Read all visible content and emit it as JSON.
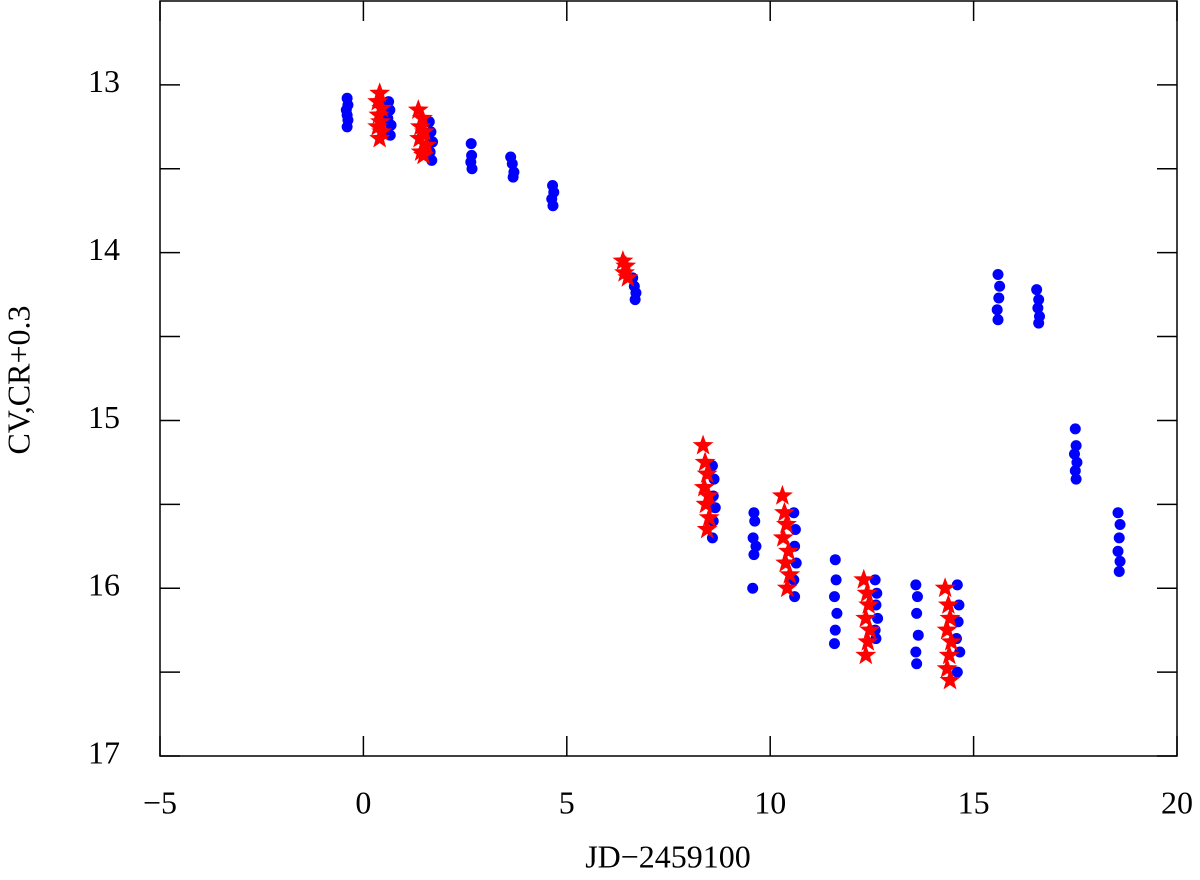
{
  "chart_data": {
    "type": "scatter",
    "x_label": "JD−2459100",
    "y_label": "CV,CR+0.3",
    "xlim": [
      -5,
      20
    ],
    "ylim": [
      12.5,
      17
    ],
    "y_inverted": true,
    "xticks": [
      {
        "value": -5,
        "label": "−5"
      },
      0,
      5,
      10,
      15,
      20
    ],
    "yticks": [
      13,
      14,
      15,
      16,
      17
    ],
    "y_minor_ticks": [
      13.5,
      14.5,
      15.5,
      16.5
    ],
    "series": [
      {
        "color": "#0000ff",
        "marker": "circle",
        "x": [
          -0.4,
          -0.38,
          -0.42,
          -0.4,
          -0.38,
          -0.4,
          0.62,
          0.65,
          0.6,
          0.68,
          0.66,
          1.62,
          1.66,
          1.7,
          1.64,
          1.68,
          2.65,
          2.66,
          2.64,
          2.67,
          3.62,
          3.66,
          3.7,
          3.68,
          4.65,
          4.68,
          4.63,
          4.66,
          6.62,
          6.66,
          6.7,
          6.68,
          8.58,
          8.62,
          8.6,
          8.65,
          8.6,
          8.58,
          9.6,
          9.62,
          9.58,
          9.65,
          9.6,
          9.57,
          10.58,
          10.62,
          10.6,
          10.64,
          10.58,
          10.6,
          11.6,
          11.62,
          11.58,
          11.64,
          11.6,
          11.58,
          12.58,
          12.62,
          12.6,
          12.64,
          12.58,
          12.6,
          13.58,
          13.62,
          13.6,
          13.64,
          13.58,
          13.6,
          14.6,
          14.64,
          14.62,
          14.58,
          14.66,
          14.6,
          15.6,
          15.64,
          15.62,
          15.58,
          15.6,
          16.55,
          16.6,
          16.58,
          16.62,
          16.6,
          17.5,
          17.52,
          17.48,
          17.54,
          17.5,
          17.52,
          18.55,
          18.6,
          18.58,
          18.55,
          18.6,
          18.58
        ],
        "values": [
          13.08,
          13.12,
          13.15,
          13.18,
          13.21,
          13.25,
          13.1,
          13.15,
          13.2,
          13.24,
          13.3,
          13.22,
          13.28,
          13.34,
          13.4,
          13.45,
          13.35,
          13.42,
          13.46,
          13.5,
          13.43,
          13.47,
          13.52,
          13.55,
          13.6,
          13.64,
          13.68,
          13.72,
          14.15,
          14.2,
          14.24,
          14.28,
          15.27,
          15.35,
          15.45,
          15.52,
          15.6,
          15.7,
          15.55,
          15.6,
          15.7,
          15.75,
          15.8,
          16.0,
          15.55,
          15.65,
          15.75,
          15.85,
          15.95,
          16.05,
          15.83,
          15.95,
          16.05,
          16.15,
          16.25,
          16.33,
          15.95,
          16.03,
          16.1,
          16.18,
          16.25,
          16.3,
          15.98,
          16.05,
          16.15,
          16.28,
          16.38,
          16.45,
          15.98,
          16.1,
          16.2,
          16.3,
          16.38,
          16.5,
          14.13,
          14.2,
          14.27,
          14.34,
          14.4,
          14.22,
          14.28,
          14.33,
          14.38,
          14.42,
          15.05,
          15.15,
          15.2,
          15.25,
          15.3,
          15.35,
          15.55,
          15.62,
          15.7,
          15.78,
          15.84,
          15.9
        ]
      },
      {
        "color": "#ff0000",
        "marker": "star",
        "x": [
          0.4,
          0.35,
          0.45,
          0.38,
          0.42,
          0.35,
          0.45,
          0.4,
          1.35,
          1.45,
          1.4,
          1.5,
          1.38,
          1.55,
          1.42,
          1.48,
          6.38,
          6.45,
          6.42,
          6.5,
          8.35,
          8.4,
          8.45,
          8.38,
          8.48,
          8.42,
          8.5,
          8.45,
          10.3,
          10.35,
          10.4,
          10.32,
          10.45,
          10.38,
          10.48,
          10.42,
          12.3,
          12.38,
          12.42,
          12.35,
          12.45,
          12.4,
          12.35,
          14.3,
          14.38,
          14.42,
          14.35,
          14.45,
          14.4,
          14.35,
          14.42
        ],
        "values": [
          13.05,
          13.1,
          13.14,
          13.18,
          13.22,
          13.25,
          13.28,
          13.32,
          13.15,
          13.2,
          13.25,
          13.28,
          13.32,
          13.36,
          13.4,
          13.42,
          14.05,
          14.08,
          14.12,
          14.15,
          15.15,
          15.25,
          15.32,
          15.4,
          15.45,
          15.5,
          15.58,
          15.65,
          15.45,
          15.55,
          15.62,
          15.7,
          15.78,
          15.85,
          15.92,
          16.0,
          15.95,
          16.03,
          16.1,
          16.18,
          16.25,
          16.32,
          16.4,
          16.0,
          16.1,
          16.18,
          16.25,
          16.32,
          16.4,
          16.48,
          16.55
        ]
      }
    ]
  }
}
